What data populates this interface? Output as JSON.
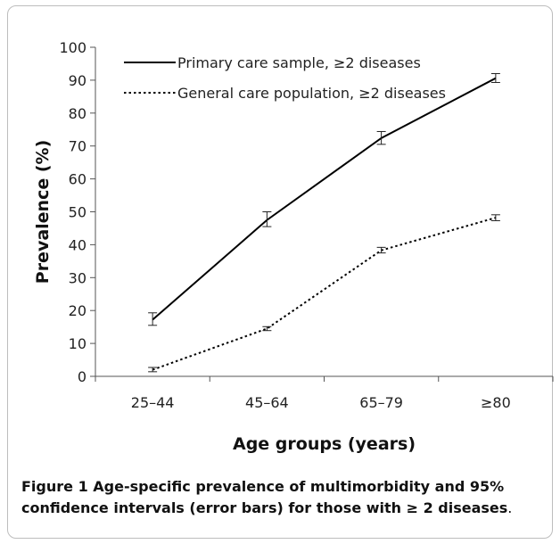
{
  "figure": {
    "label": "Figure 1",
    "caption": "Age-specific prevalence of multimorbidity and 95% confidence intervals (error bars) for those with ≥ 2 diseases",
    "caption_end": "."
  },
  "chart_data": {
    "type": "line",
    "categories": [
      "25–44",
      "45–64",
      "65–79",
      "≥80"
    ],
    "xlabel": "Age groups (years)",
    "ylabel": "Prevalence (%)",
    "ylim": [
      0,
      100
    ],
    "yticks": [
      0,
      10,
      20,
      30,
      40,
      50,
      60,
      70,
      80,
      90,
      100
    ],
    "legend_position": "top-left",
    "grid": false,
    "series": [
      {
        "name": "Primary care sample, ≥2 diseases",
        "style": "solid",
        "color": "#000000",
        "values": [
          17.2,
          47.5,
          72.4,
          90.6
        ],
        "err_low": [
          15.5,
          45.5,
          70.5,
          89.3
        ],
        "err_high": [
          19.3,
          50.0,
          74.4,
          92.0
        ]
      },
      {
        "name": "General care population, ≥2 diseases",
        "style": "dotted",
        "color": "#000000",
        "values": [
          2.0,
          14.5,
          38.3,
          48.2
        ],
        "err_low": [
          1.4,
          13.9,
          37.5,
          47.3
        ],
        "err_high": [
          2.7,
          15.1,
          39.2,
          49.1
        ]
      }
    ]
  }
}
